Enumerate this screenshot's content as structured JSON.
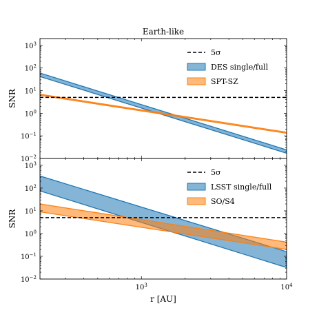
{
  "chart_data": [
    {
      "type": "area",
      "title": "Earth-like",
      "ylabel": "SNR",
      "xlabel": "",
      "xscale": "log",
      "yscale": "log",
      "xlim": [
        200,
        10000
      ],
      "ylim": [
        0.01,
        2000
      ],
      "yticks": [
        {
          "value": 0.01,
          "base": "10",
          "exp": "−2"
        },
        {
          "value": 0.1,
          "base": "10",
          "exp": "−1"
        },
        {
          "value": 1,
          "base": "10",
          "exp": "0"
        },
        {
          "value": 10,
          "base": "10",
          "exp": "1"
        },
        {
          "value": 100,
          "base": "10",
          "exp": "2"
        },
        {
          "value": 1000,
          "base": "10",
          "exp": "3"
        }
      ],
      "legend_position": "top-right",
      "threshold": {
        "name": "5σ",
        "value": 5,
        "style": "dashed",
        "color": "#000000"
      },
      "series": [
        {
          "name": "DES single/full",
          "color": "#1f77b4",
          "x": [
            200,
            10000
          ],
          "y_low": [
            42,
            0.017
          ],
          "y_high": [
            60,
            0.024
          ]
        },
        {
          "name": "SPT-SZ",
          "color": "#ff7f0e",
          "x": [
            200,
            10000
          ],
          "y_low": [
            6.2,
            0.13
          ],
          "y_high": [
            6.9,
            0.145
          ]
        }
      ]
    },
    {
      "type": "area",
      "title": "",
      "ylabel": "SNR",
      "xlabel": "r [AU]",
      "xscale": "log",
      "yscale": "log",
      "xlim": [
        200,
        10000
      ],
      "ylim": [
        0.01,
        2000
      ],
      "xticks": [
        {
          "value": 1000,
          "base": "10",
          "exp": "3"
        },
        {
          "value": 10000,
          "base": "10",
          "exp": "4"
        }
      ],
      "yticks": [
        {
          "value": 0.01,
          "base": "10",
          "exp": "−2"
        },
        {
          "value": 0.1,
          "base": "10",
          "exp": "−1"
        },
        {
          "value": 1,
          "base": "10",
          "exp": "0"
        },
        {
          "value": 10,
          "base": "10",
          "exp": "1"
        },
        {
          "value": 100,
          "base": "10",
          "exp": "2"
        },
        {
          "value": 1000,
          "base": "10",
          "exp": "3"
        }
      ],
      "legend_position": "top-right",
      "threshold": {
        "name": "5σ",
        "value": 5,
        "style": "dashed",
        "color": "#000000"
      },
      "series": [
        {
          "name": "LSST single/full",
          "color": "#1f77b4",
          "x": [
            200,
            10000
          ],
          "y_low": [
            75,
            0.032
          ],
          "y_high": [
            340,
            0.16
          ]
        },
        {
          "name": "SO/S4",
          "color": "#ff7f0e",
          "x": [
            200,
            10000
          ],
          "y_low": [
            9,
            0.2
          ],
          "y_high": [
            20,
            0.42
          ]
        }
      ]
    }
  ]
}
